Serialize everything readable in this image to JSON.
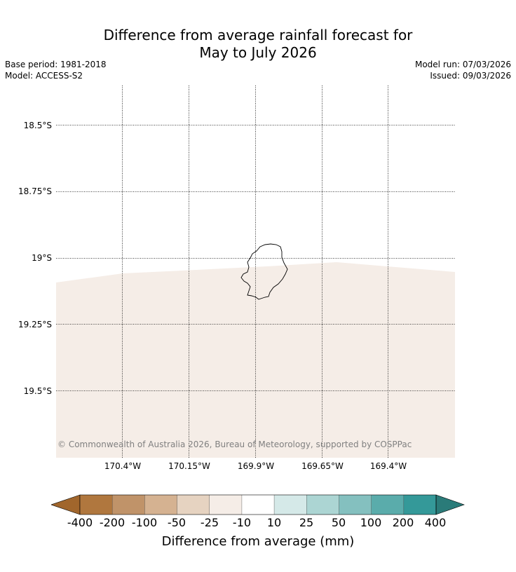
{
  "title_line1": "Difference from average rainfall forecast for",
  "title_line2": "May to July 2026",
  "base_period": "Base period: 1981-2018",
  "model": "Model: ACCESS-S2",
  "model_run": "Model run: 07/03/2026",
  "issued": "Issued: 09/03/2026",
  "lat_labels": [
    "18.5°S",
    "18.75°S",
    "19°S",
    "19.25°S",
    "19.5°S"
  ],
  "lon_labels": [
    "170.4°W",
    "170.15°W",
    "169.9°W",
    "169.65°W",
    "169.4°W"
  ],
  "copyright": "© Commonwealth of Australia 2026, Bureau of Meteorology, supported by COSPPac",
  "forecast_category": "-25 to -10",
  "forecast_fill_color": "#f5ede7",
  "colorbar": {
    "title": "Difference from average (mm)",
    "ticks": [
      "-400",
      "-200",
      "-100",
      "-50",
      "-25",
      "-10",
      "10",
      "25",
      "50",
      "100",
      "200",
      "400"
    ],
    "low_extend_color": "#a1662c",
    "high_extend_color": "#2a7b79",
    "colors": [
      "#b0773e",
      "#c09369",
      "#d5b291",
      "#e6d3c1",
      "#f5ede7",
      "#ffffff",
      "#d5e9e8",
      "#acd5d3",
      "#84c0bf",
      "#5aacab",
      "#349999"
    ]
  }
}
